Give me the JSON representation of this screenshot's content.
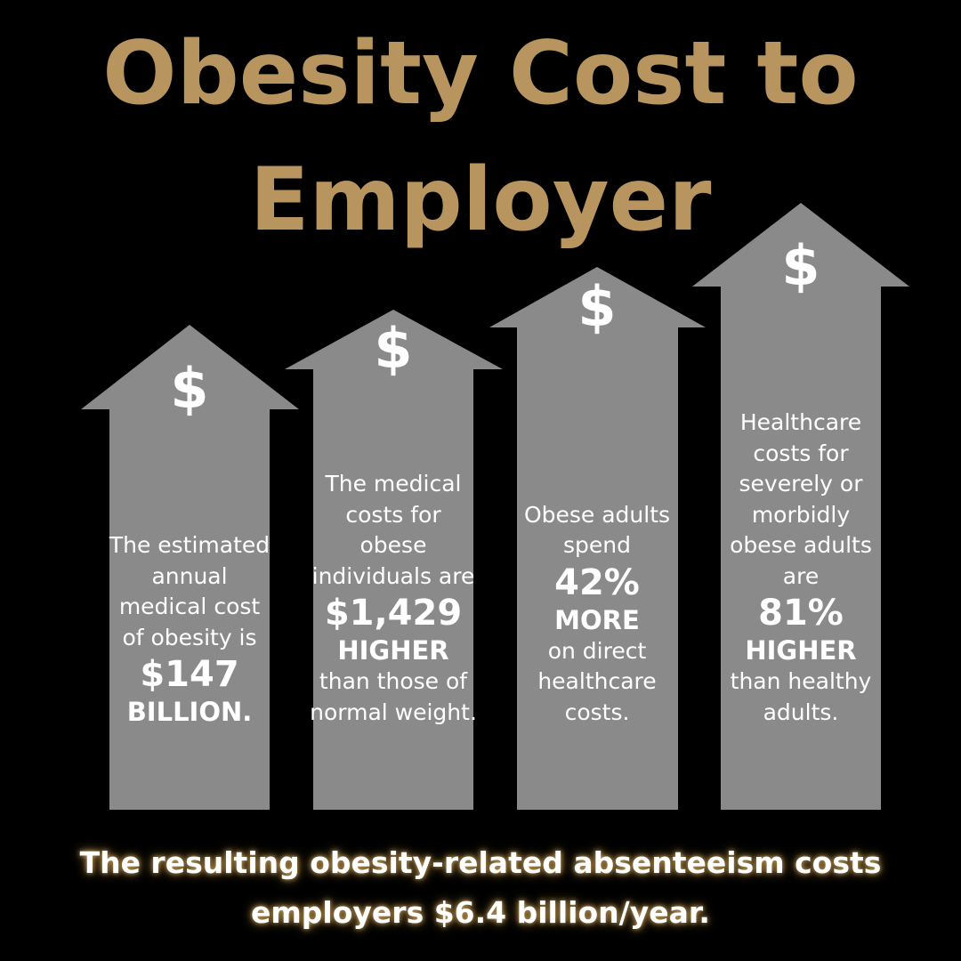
{
  "title": "Obesity Cost to Employer",
  "arrows": [
    {
      "symbol": "$",
      "text": "The estimated annual medical cost of obesity is",
      "value": "$147",
      "emphasis": "BILLION."
    },
    {
      "symbol": "$",
      "text": "The medical costs for obese individuals are",
      "value": "$1,429",
      "emphasis": "HIGHER",
      "trailing": "than those of normal weight."
    },
    {
      "symbol": "$",
      "text": "Obese adults spend",
      "value": "42%",
      "emphasis": "MORE",
      "trailing": "on direct healthcare costs."
    },
    {
      "symbol": "$",
      "text": "Healthcare costs for severely or morbidly obese adults are",
      "value": "81%",
      "emphasis": "HIGHER",
      "trailing": "than healthy adults."
    }
  ],
  "footer": "The resulting obesity-related absenteeism costs employers $6.4 billion/year."
}
